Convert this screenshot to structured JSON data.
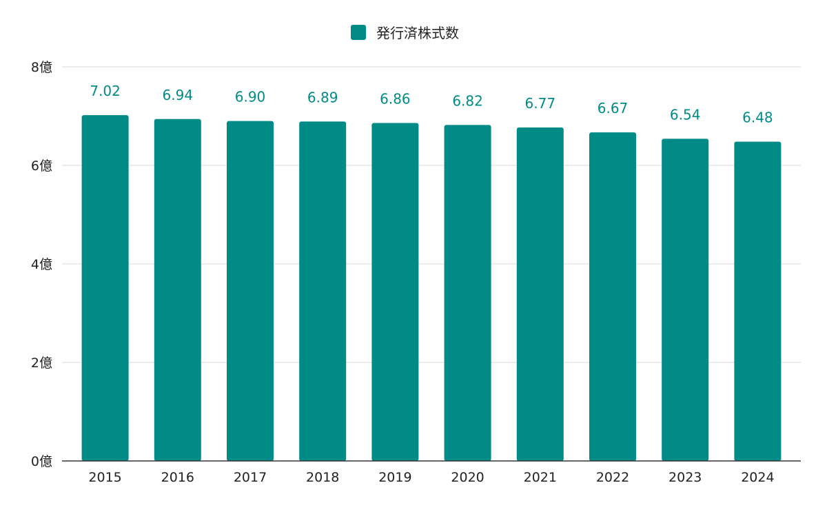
{
  "chart_data": {
    "type": "bar",
    "legend": {
      "position": "top-center",
      "label": "発行済株式数"
    },
    "categories": [
      "2015",
      "2016",
      "2017",
      "2018",
      "2019",
      "2020",
      "2021",
      "2022",
      "2023",
      "2024"
    ],
    "series": [
      {
        "name": "発行済株式数",
        "values": [
          7.02,
          6.94,
          6.9,
          6.89,
          6.86,
          6.82,
          6.77,
          6.67,
          6.54,
          6.48
        ],
        "data_labels": [
          "7.02",
          "6.94",
          "6.90",
          "6.89",
          "6.86",
          "6.82",
          "6.77",
          "6.67",
          "6.54",
          "6.48"
        ],
        "color": "#008b87"
      }
    ],
    "y_ticks": [
      0,
      2,
      4,
      6,
      8
    ],
    "y_tick_labels": [
      "0億",
      "2億",
      "4億",
      "6億",
      "8億"
    ],
    "ylim": [
      0,
      8
    ],
    "grid": true,
    "grid_color": "#d9d9d9",
    "axis_color": "#333333",
    "label_color": "#008b87"
  }
}
